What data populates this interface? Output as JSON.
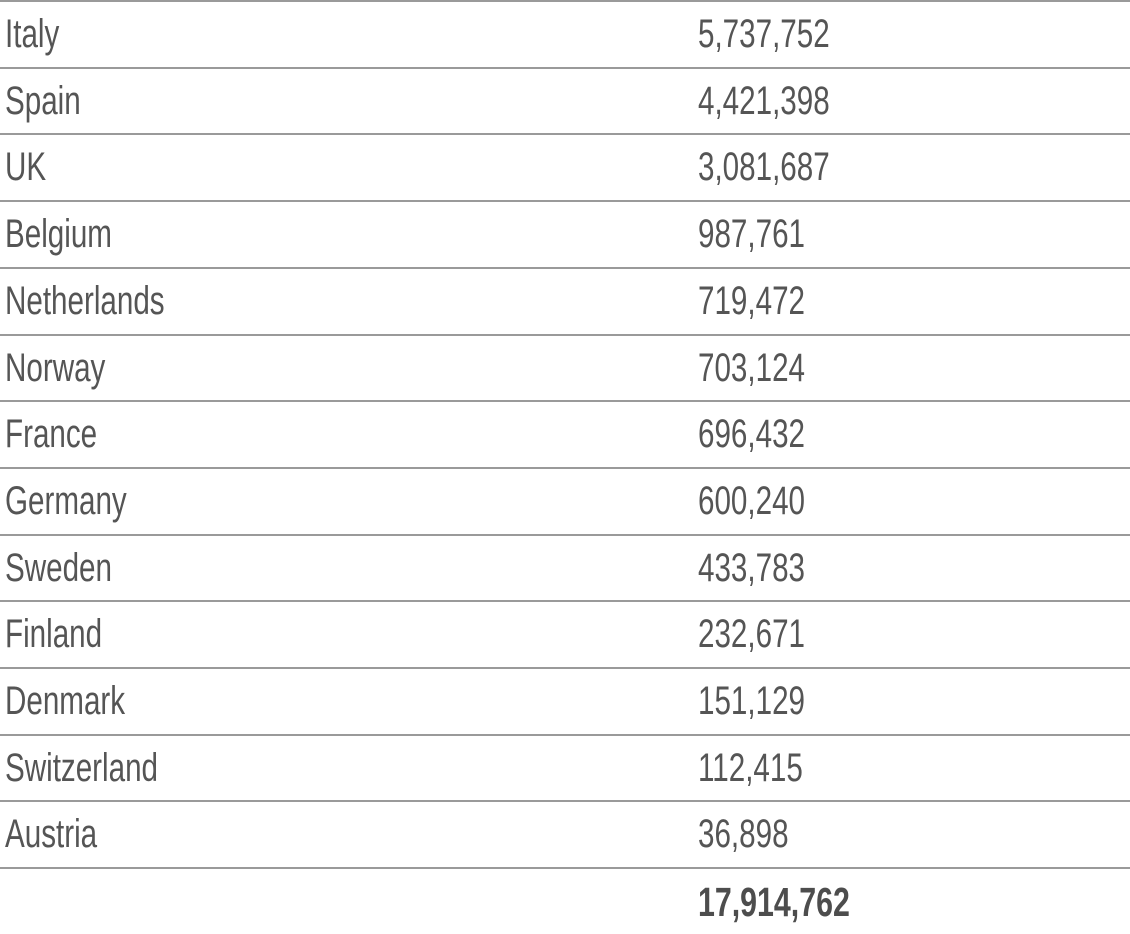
{
  "table": {
    "rows": [
      {
        "country": "Italy",
        "value": "5,737,752"
      },
      {
        "country": "Spain",
        "value": "4,421,398"
      },
      {
        "country": "UK",
        "value": "3,081,687"
      },
      {
        "country": "Belgium",
        "value": "987,761"
      },
      {
        "country": "Netherlands",
        "value": "719,472"
      },
      {
        "country": "Norway",
        "value": "703,124"
      },
      {
        "country": "France",
        "value": "696,432"
      },
      {
        "country": "Germany",
        "value": "600,240"
      },
      {
        "country": "Sweden",
        "value": "433,783"
      },
      {
        "country": "Finland",
        "value": "232,671"
      },
      {
        "country": "Denmark",
        "value": "151,129"
      },
      {
        "country": "Switzerland",
        "value": "112,415"
      },
      {
        "country": "Austria",
        "value": "36,898"
      }
    ],
    "total": "17,914,762"
  }
}
